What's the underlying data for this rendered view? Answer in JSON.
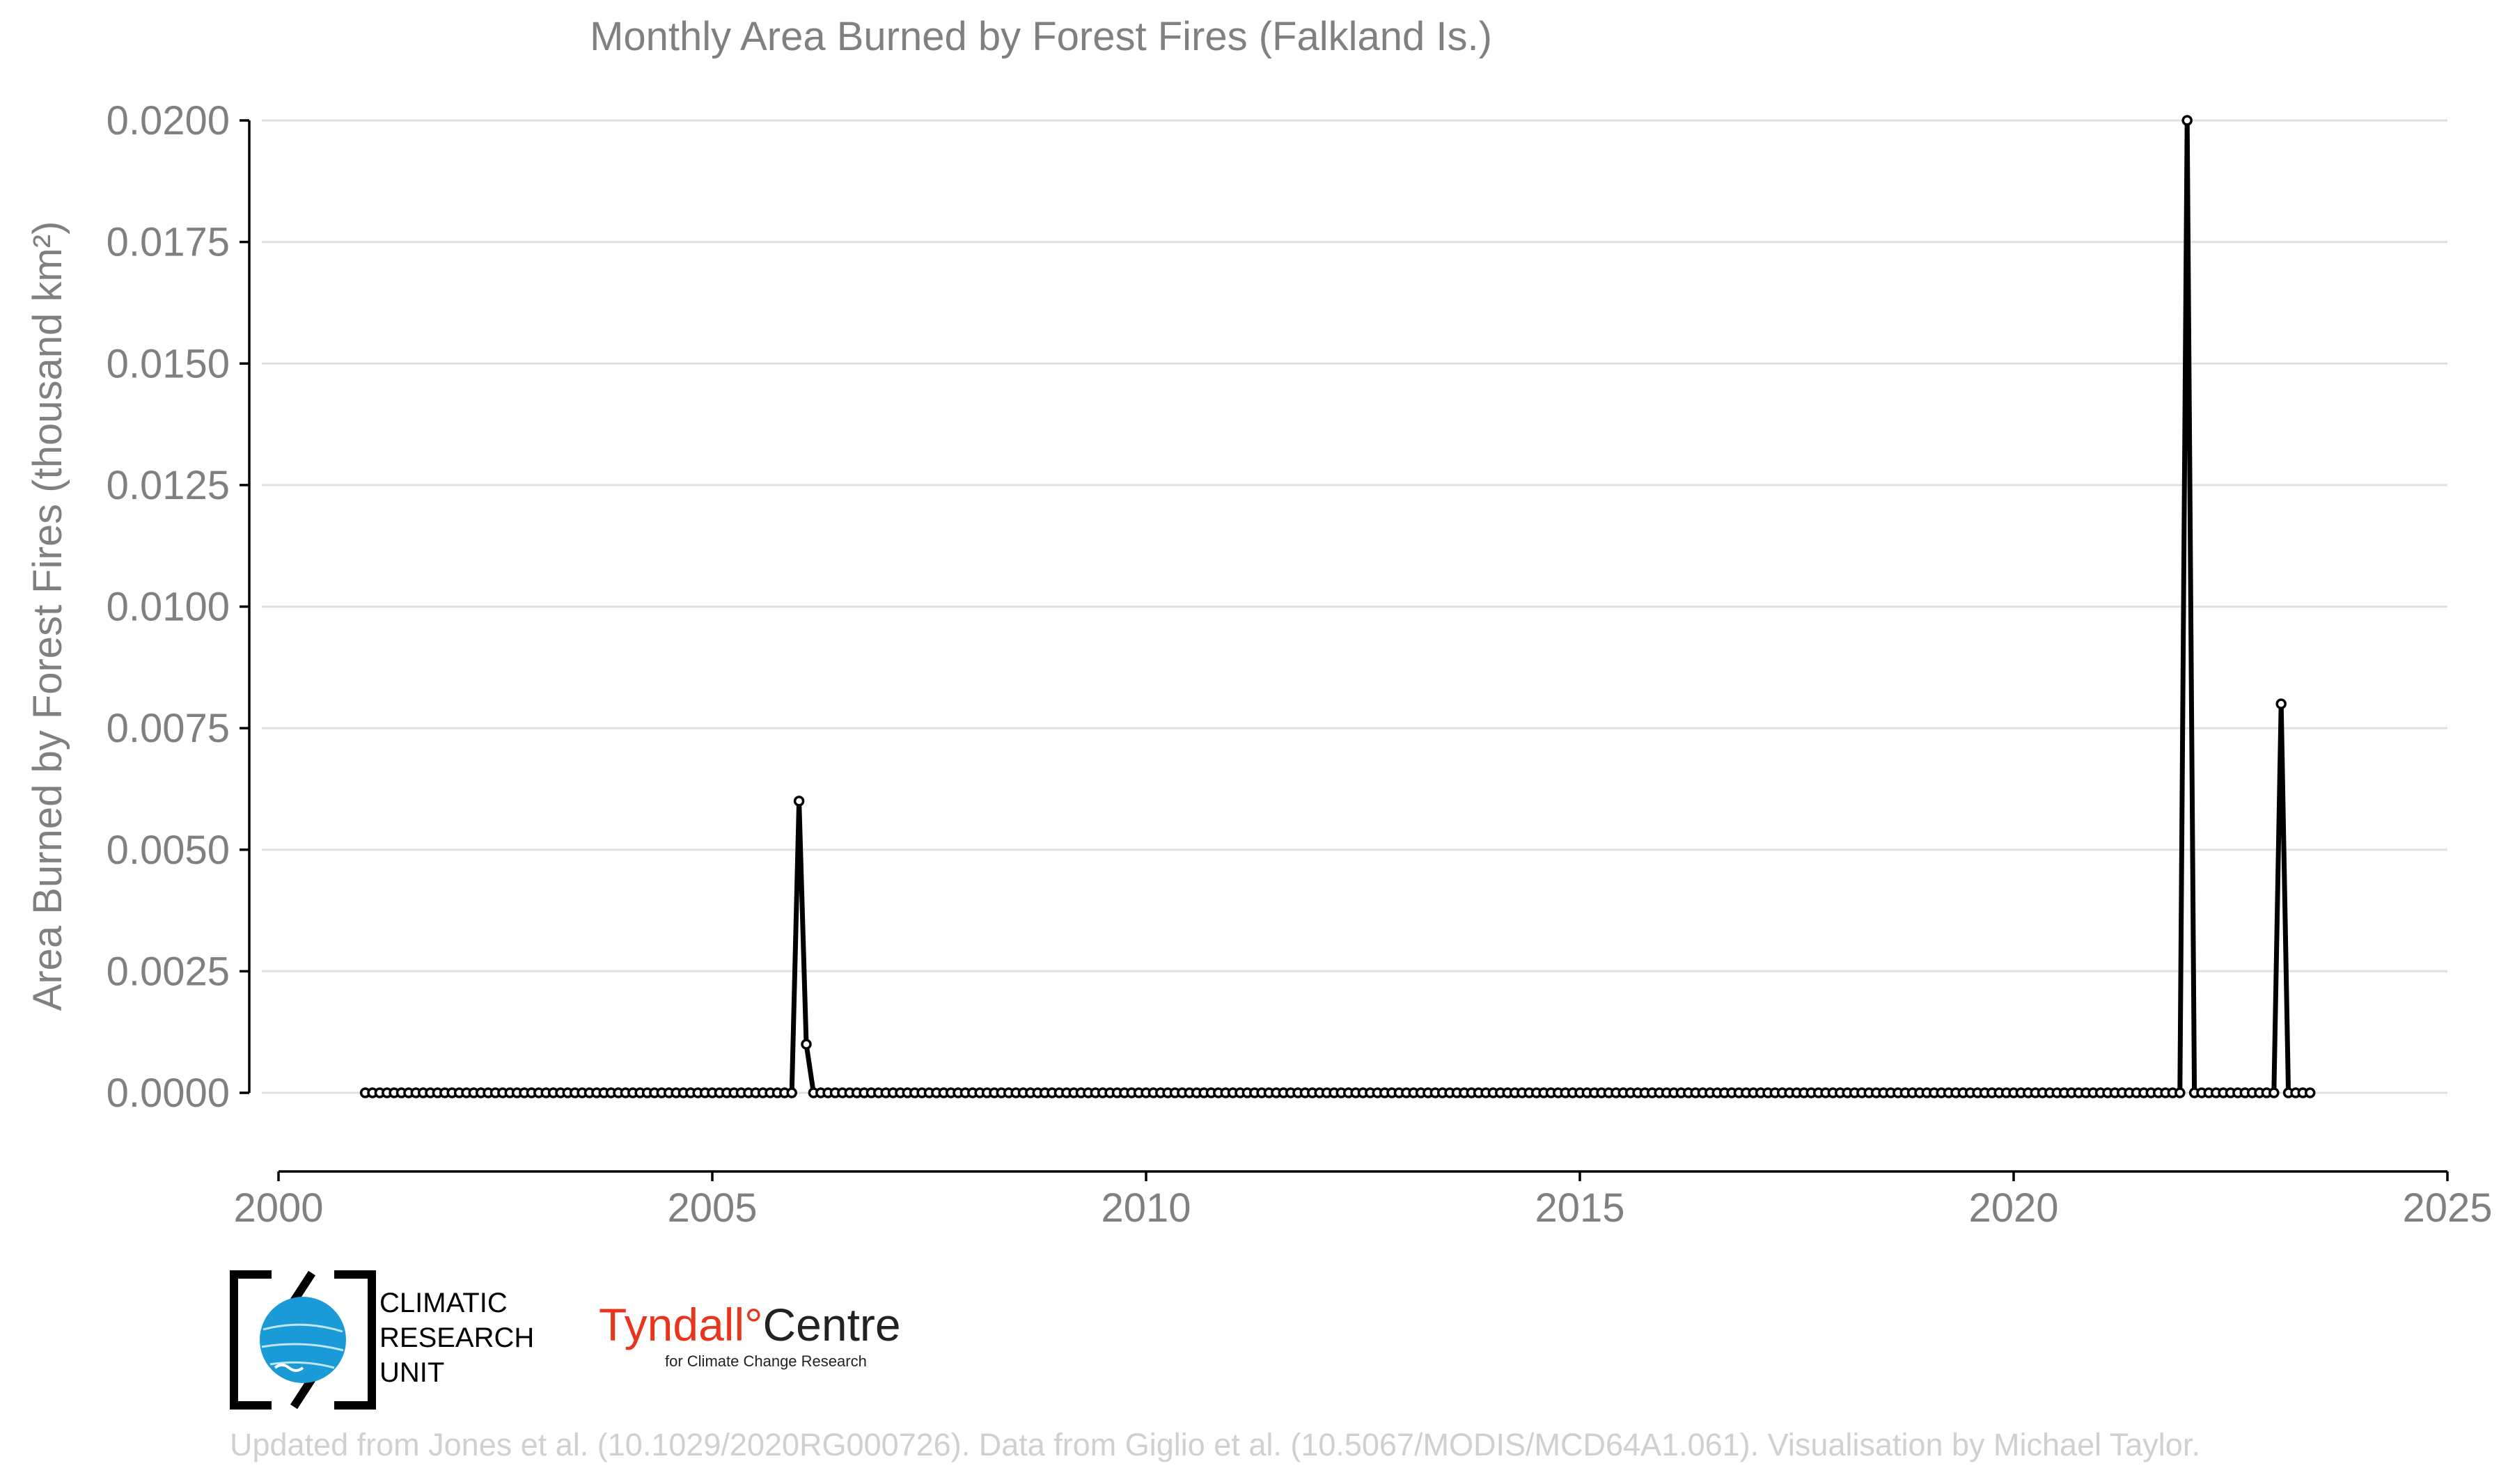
{
  "chart_data": {
    "type": "line",
    "title": "Monthly Area Burned by Forest Fires (Falkland Is.)",
    "ylabel": "Area Burned by Forest Fires (thousand km²)",
    "xlabel": "",
    "xlim": [
      2000,
      2025
    ],
    "ylim": [
      0,
      0.02
    ],
    "x_ticks": [
      "2000",
      "2005",
      "2010",
      "2015",
      "2020",
      "2025"
    ],
    "y_ticks": [
      "0.0000",
      "0.0025",
      "0.0050",
      "0.0075",
      "0.0100",
      "0.0125",
      "0.0150",
      "0.0175",
      "0.0200"
    ],
    "grid": "horizontal",
    "series_start": "2001-01",
    "series_end": "2023-06",
    "nonzero_points": [
      {
        "date": "2006-01",
        "value": 0.006
      },
      {
        "date": "2006-02",
        "value": 0.001
      },
      {
        "date": "2022-01",
        "value": 0.02
      },
      {
        "date": "2023-02",
        "value": 0.008
      }
    ],
    "default_value": 0
  },
  "logos": {
    "cru_lines": [
      "CLIMATIC",
      "RESEARCH",
      "UNIT"
    ],
    "tyndall_main": "Tyndall°",
    "tyndall_centre": "Centre",
    "tyndall_sub": "for Climate Change Research"
  },
  "footer": "Updated from Jones et al. (10.1029/2020RG000726). Data from Giglio et al. (10.5067/MODIS/MCD64A1.061). Visualisation by Michael Taylor.",
  "colors": {
    "line": "#000000",
    "marker_fill": "#ffffff",
    "text": "#808080",
    "tyndall": "#e8361e",
    "cru_globe": "#1a9ad6"
  }
}
